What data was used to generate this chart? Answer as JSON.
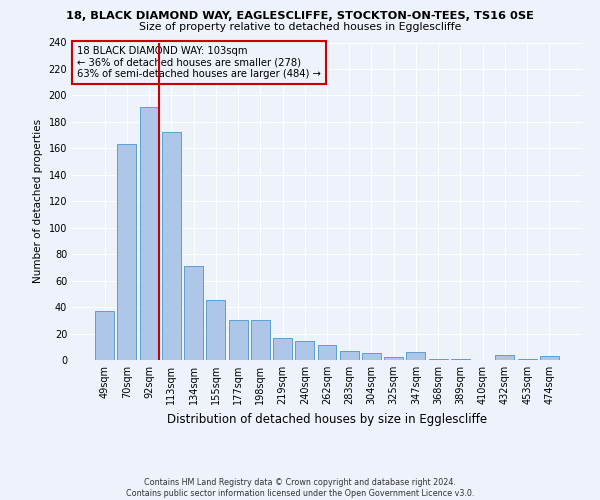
{
  "title1": "18, BLACK DIAMOND WAY, EAGLESCLIFFE, STOCKTON-ON-TEES, TS16 0SE",
  "title2": "Size of property relative to detached houses in Egglescliffe",
  "xlabel": "Distribution of detached houses by size in Egglescliffe",
  "ylabel": "Number of detached properties",
  "footnote": "Contains HM Land Registry data © Crown copyright and database right 2024.\nContains public sector information licensed under the Open Government Licence v3.0.",
  "categories": [
    "49sqm",
    "70sqm",
    "92sqm",
    "113sqm",
    "134sqm",
    "155sqm",
    "177sqm",
    "198sqm",
    "219sqm",
    "240sqm",
    "262sqm",
    "283sqm",
    "304sqm",
    "325sqm",
    "347sqm",
    "368sqm",
    "389sqm",
    "410sqm",
    "432sqm",
    "453sqm",
    "474sqm"
  ],
  "values": [
    37,
    163,
    191,
    172,
    71,
    45,
    30,
    30,
    17,
    14,
    11,
    7,
    5,
    2,
    6,
    1,
    1,
    0,
    4,
    1,
    3
  ],
  "bar_color": "#aec6e8",
  "bar_edge_color": "#5a9fd4",
  "vline_color": "#cc0000",
  "annotation_title": "18 BLACK DIAMOND WAY: 103sqm",
  "annotation_line1": "← 36% of detached houses are smaller (278)",
  "annotation_line2": "63% of semi-detached houses are larger (484) →",
  "annotation_box_color": "#cc0000",
  "ylim": [
    0,
    240
  ],
  "yticks": [
    0,
    20,
    40,
    60,
    80,
    100,
    120,
    140,
    160,
    180,
    200,
    220,
    240
  ],
  "background_color": "#eef2fa",
  "grid_color": "#ffffff"
}
